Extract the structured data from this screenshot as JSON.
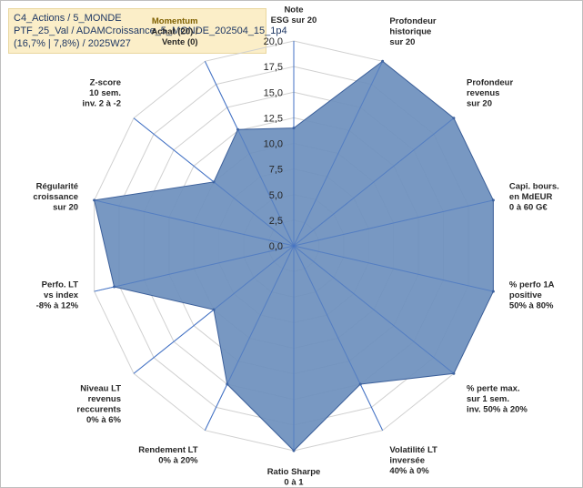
{
  "title_lines": [
    "C4_Actions / 5_MONDE",
    "PTF_25_Val / ADAMCroissance_5_MONDE_202504_15_1p4",
    "(16,7% | 7,8%) / 2025W27"
  ],
  "chart_data": {
    "type": "radar",
    "r_min": 0,
    "r_max": 20,
    "r_ticks": [
      "0,0",
      "2,5",
      "5,0",
      "7,5",
      "10,0",
      "12,5",
      "15,0",
      "17,5",
      "20,0"
    ],
    "categories": [
      [
        "Note",
        "ESG sur 20"
      ],
      [
        "Profondeur",
        "historique",
        "sur 20"
      ],
      [
        "Profondeur",
        "revenus",
        "sur 20"
      ],
      [
        "Capi. bours.",
        "en MdEUR",
        "0 à 60 G€"
      ],
      [
        "% perfo 1A",
        "positive",
        "50% à 80%"
      ],
      [
        "% perte max.",
        "sur 1 sem.",
        "inv. 50% à 20%"
      ],
      [
        "Volatilité LT",
        "inversée",
        "40% à 0%"
      ],
      [
        "Ratio Sharpe",
        "0 à 1"
      ],
      [
        "Rendement LT",
        "0% à 20%"
      ],
      [
        "Niveau LT",
        "revenus",
        "reccurents",
        "0% à 6%"
      ],
      [
        "Perfo. LT",
        "vs index",
        "-8% à 12%"
      ],
      [
        "Régularité",
        "croissance",
        "sur 20"
      ],
      [
        "Z-score",
        "10 sem.",
        "inv. 2 à -2"
      ],
      [
        "Momentum",
        "Achat (20) /",
        "Vente (0)"
      ]
    ],
    "values": [
      11.5,
      20,
      20,
      20,
      20,
      20,
      15,
      20,
      15,
      10,
      18,
      20,
      10,
      12.6
    ],
    "fill_color": "#6d8fbd",
    "stroke_color": "#3b5f9a",
    "axis_color": "#4472c4",
    "grid_color": "#d0d0d0",
    "momentum_color": "#7f6000"
  }
}
